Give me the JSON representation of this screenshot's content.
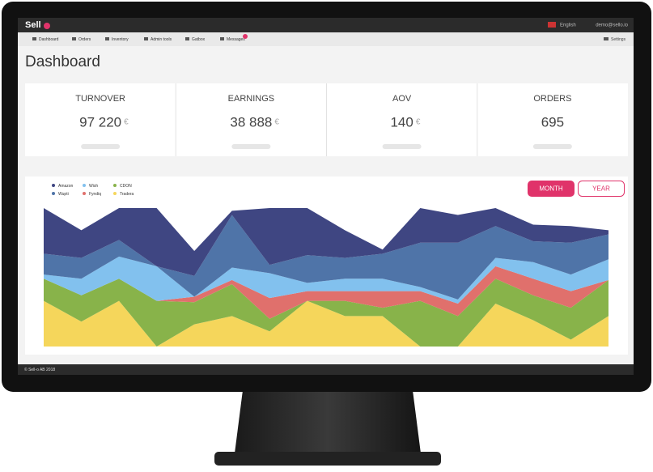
{
  "header": {
    "logo": "Sell",
    "language": "English",
    "user": "demo@sello.io"
  },
  "nav": [
    "Dashboard",
    "Orders",
    "Inventory",
    "Admin tools",
    "Gatbox",
    "Messages"
  ],
  "settings": "Settings",
  "page_title": "Dashboard",
  "cards": [
    {
      "label": "TURNOVER",
      "value": "97 220",
      "unit": "€"
    },
    {
      "label": "EARNINGS",
      "value": "38 888",
      "unit": "€"
    },
    {
      "label": "AOV",
      "value": "140",
      "unit": "€"
    },
    {
      "label": "ORDERS",
      "value": "695"
    }
  ],
  "buttons": [
    "MONTH",
    "YEAR"
  ],
  "footer": "© Sell-o AB 2018",
  "chart_data": {
    "type": "stacked_area",
    "categories": [
      null,
      null,
      null,
      null,
      null,
      null,
      null,
      null,
      null,
      null,
      null,
      null,
      null,
      null,
      null,
      null
    ],
    "ylim": [
      0,
      100
    ],
    "series": [
      {
        "name": "Tradera",
        "color": "#f5d65b",
        "values": [
          33,
          18,
          33,
          0,
          16,
          22,
          11,
          33,
          22,
          22,
          0,
          0,
          31,
          19,
          5,
          22
        ]
      },
      {
        "name": "CDON",
        "color": "#88b34a",
        "values": [
          16,
          19,
          16,
          33,
          16,
          23,
          9,
          0,
          11,
          6,
          33,
          22,
          18,
          18,
          23,
          26
        ]
      },
      {
        "name": "Fyndiq",
        "color": "#e0706c",
        "values": [
          0,
          0,
          0,
          0,
          4,
          3,
          15,
          7,
          7,
          12,
          7,
          9,
          9,
          12,
          12,
          0
        ]
      },
      {
        "name": "Wish",
        "color": "#82c1ee",
        "values": [
          3,
          12,
          16,
          25,
          0,
          9,
          18,
          6,
          9,
          9,
          3,
          3,
          6,
          12,
          12,
          15
        ]
      },
      {
        "name": "Wupti",
        "color": "#4f74a8",
        "values": [
          15,
          15,
          12,
          0,
          15,
          38,
          6,
          20,
          15,
          18,
          32,
          41,
          23,
          15,
          23,
          18
        ]
      },
      {
        "name": "Amazon",
        "color": "#3f4682",
        "values": [
          33,
          20,
          23,
          42,
          18,
          3,
          41,
          34,
          20,
          3,
          25,
          20,
          13,
          12,
          12,
          3
        ]
      }
    ]
  }
}
